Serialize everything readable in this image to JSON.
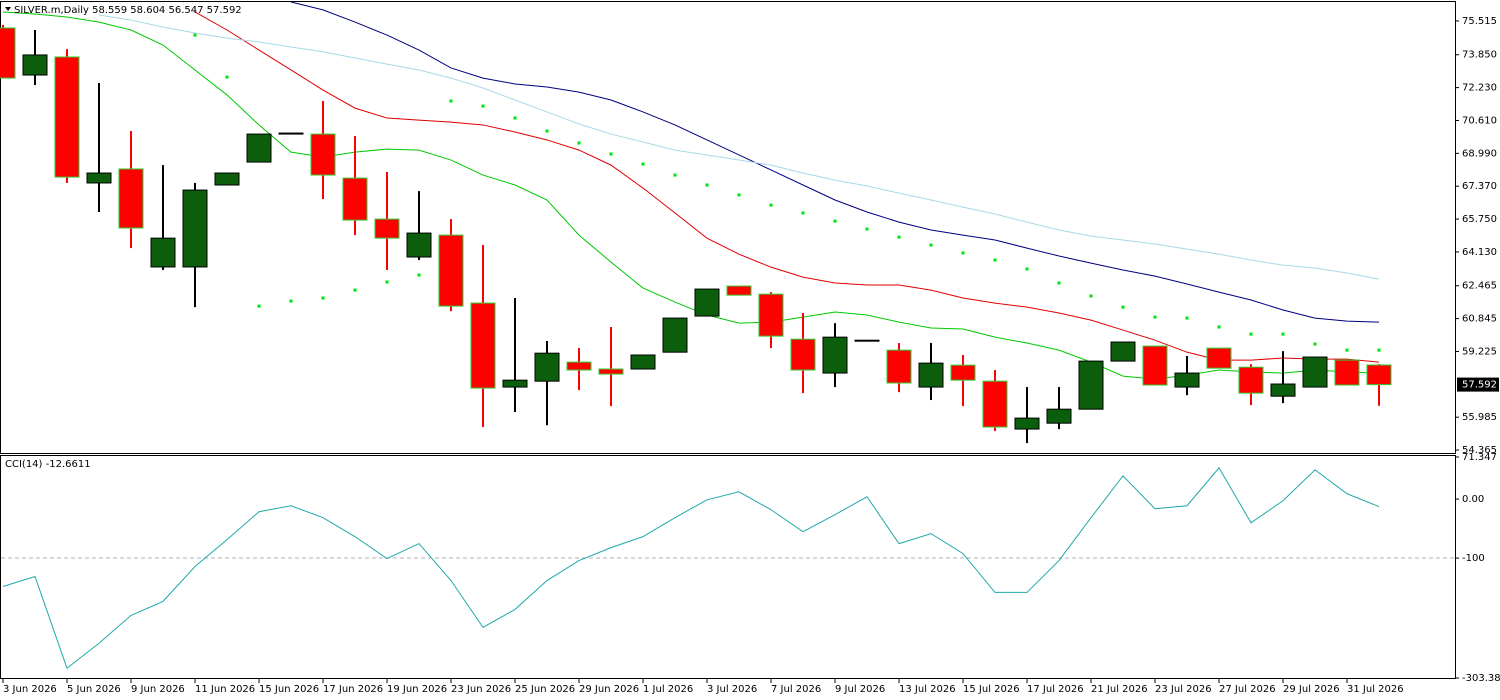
{
  "chart_data": [
    {
      "type": "candlestick",
      "title": "SILVER.m,Daily",
      "categories": [
        "3 Jun 2026",
        null,
        "5 Jun 2026",
        null,
        "9 Jun 2026",
        null,
        "11 Jun 2026",
        null,
        "15 Jun 2026",
        null,
        "17 Jun 2026",
        null,
        "19 Jun 2026",
        null,
        "23 Jun 2026",
        null,
        "25 Jun 2026",
        null,
        "29 Jun 2026",
        null,
        "1 Jul 2026",
        null,
        "3 Jul 2026",
        null,
        "7 Jul 2026",
        null,
        "9 Jul 2026",
        null,
        "13 Jul 2026",
        null,
        "15 Jul 2026",
        null,
        "17 Jul 2026",
        null,
        "21 Jul 2026",
        null,
        "23 Jul 2026",
        null,
        "27 Jul 2026",
        null,
        "29 Jul 2026",
        null,
        "31 Jul 2026",
        null
      ],
      "open": [
        75.17,
        72.85,
        73.74,
        67.53,
        68.22,
        63.39,
        63.39,
        67.43,
        68.56,
        69.94,
        69.94,
        67.77,
        65.75,
        63.88,
        64.96,
        61.61,
        57.47,
        57.76,
        58.7,
        58.36,
        58.36,
        59.19,
        60.97,
        62.45,
        62.05,
        59.83,
        58.16,
        59.78,
        59.29,
        57.47,
        58.55,
        57.76,
        55.4,
        55.69,
        56.38,
        58.75,
        59.49,
        57.47,
        59.39,
        58.45,
        57.02,
        57.47,
        58.8,
        58.559
      ],
      "high": [
        75.32,
        75.07,
        74.13,
        72.46,
        70.09,
        68.41,
        67.53,
        68.02,
        69.94,
        69.99,
        71.57,
        69.84,
        68.07,
        67.13,
        65.75,
        64.47,
        61.86,
        59.74,
        59.39,
        60.43,
        59.05,
        60.87,
        62.3,
        62.45,
        62.15,
        61.12,
        60.62,
        59.78,
        59.64,
        59.64,
        59.05,
        58.31,
        57.47,
        57.47,
        58.75,
        59.69,
        59.49,
        59.0,
        59.39,
        58.6,
        59.24,
        58.95,
        58.8,
        58.604
      ],
      "low": [
        72.7,
        72.36,
        67.53,
        66.1,
        64.32,
        63.24,
        61.41,
        67.43,
        68.56,
        69.94,
        66.74,
        64.96,
        63.24,
        63.73,
        61.21,
        55.5,
        56.24,
        55.59,
        57.32,
        56.53,
        58.36,
        59.19,
        60.97,
        62.0,
        59.39,
        57.17,
        57.47,
        59.78,
        57.22,
        56.83,
        56.53,
        55.3,
        54.71,
        55.4,
        56.38,
        58.75,
        57.57,
        57.07,
        58.4,
        56.58,
        56.68,
        57.47,
        57.57,
        56.547
      ],
      "close": [
        72.7,
        73.84,
        67.82,
        68.02,
        65.31,
        64.81,
        67.18,
        68.02,
        69.94,
        69.99,
        67.92,
        65.7,
        64.81,
        65.06,
        61.46,
        57.42,
        57.81,
        59.14,
        58.31,
        58.11,
        59.05,
        60.87,
        62.3,
        62.0,
        59.98,
        58.31,
        59.93,
        59.78,
        57.67,
        58.65,
        57.81,
        55.5,
        55.94,
        56.38,
        58.75,
        59.69,
        57.57,
        58.16,
        58.4,
        57.17,
        57.62,
        58.95,
        57.57,
        57.592
      ],
      "up_color": "#0b5e0b",
      "down_color": "#ff0000",
      "series": [
        {
          "color": "#00c800",
          "values": [
            75.96,
            75.86,
            75.71,
            75.46,
            75.07,
            74.33,
            73.1,
            71.87,
            70.39,
            69.05,
            68.81,
            69.05,
            69.2,
            69.15,
            68.66,
            67.92,
            67.43,
            66.69,
            64.96,
            63.63,
            62.35,
            61.66,
            61.02,
            60.62,
            60.67,
            60.92,
            61.17,
            61.02,
            60.67,
            60.38,
            60.33,
            59.93,
            59.64,
            59.29,
            58.7,
            58.01,
            57.86,
            58.06,
            58.31,
            58.21,
            58.16,
            58.31,
            58.21,
            58.16
          ]
        },
        {
          "color": "#e00000",
          "values": [
            null,
            null,
            null,
            null,
            null,
            null,
            75.96,
            75.07,
            74.08,
            73.1,
            72.11,
            71.22,
            70.73,
            70.63,
            70.53,
            70.39,
            70.04,
            69.65,
            69.15,
            68.41,
            67.28,
            66.05,
            64.81,
            64.02,
            63.38,
            62.89,
            62.6,
            62.5,
            62.5,
            62.25,
            61.86,
            61.61,
            61.41,
            61.12,
            60.77,
            60.28,
            59.78,
            59.19,
            58.8,
            58.8,
            58.9,
            58.85,
            58.85,
            58.7
          ]
        },
        {
          "color": "#000080",
          "values": [
            null,
            null,
            null,
            null,
            null,
            null,
            null,
            null,
            null,
            76.45,
            76.06,
            75.46,
            74.82,
            74.08,
            73.2,
            72.7,
            72.41,
            72.26,
            72.01,
            71.62,
            71.03,
            70.39,
            69.65,
            68.91,
            68.17,
            67.43,
            66.69,
            66.1,
            65.6,
            65.21,
            64.96,
            64.72,
            64.32,
            63.93,
            63.58,
            63.24,
            62.94,
            62.55,
            62.15,
            61.76,
            61.27,
            60.87,
            60.72,
            60.67
          ]
        },
        {
          "color": "#a8d8e8",
          "values": [
            null,
            null,
            null,
            75.81,
            75.56,
            75.22,
            74.92,
            74.67,
            74.48,
            74.23,
            73.99,
            73.69,
            73.39,
            73.1,
            72.7,
            72.21,
            71.62,
            71.03,
            70.44,
            69.94,
            69.55,
            69.15,
            68.91,
            68.66,
            68.41,
            68.02,
            67.67,
            67.38,
            67.03,
            66.69,
            66.34,
            66.0,
            65.6,
            65.21,
            64.91,
            64.72,
            64.52,
            64.27,
            64.02,
            63.73,
            63.48,
            63.33,
            63.09,
            62.79
          ]
        }
      ],
      "sar": {
        "color": "#00e000",
        "values": [
          null,
          null,
          null,
          null,
          null,
          null,
          74.82,
          72.75,
          61.46,
          61.71,
          61.86,
          62.25,
          62.65,
          62.99,
          71.57,
          71.32,
          70.73,
          70.09,
          69.5,
          68.96,
          68.46,
          67.92,
          67.43,
          66.94,
          66.44,
          66.05,
          65.65,
          65.26,
          64.86,
          64.47,
          64.08,
          63.73,
          63.29,
          62.6,
          61.96,
          61.41,
          60.92,
          60.87,
          60.43,
          60.08,
          60.08,
          59.59,
          59.29,
          59.29
        ]
      },
      "ylim": [
        54.22,
        76.45
      ],
      "yticks": [
        75.515,
        {
          "value": 73.85,
          "label": "73.850"
        },
        {
          "value": 72.23,
          "label": "72.230"
        },
        {
          "value": 70.61,
          "label": "70.610"
        },
        {
          "value": 68.99,
          "label": "68.990"
        },
        {
          "value": 67.37,
          "label": "67.370"
        },
        {
          "value": 65.75,
          "label": "65.750"
        },
        {
          "value": 64.13,
          "label": "64.130"
        },
        62.465,
        60.845,
        59.225,
        55.985,
        54.365
      ]
    },
    {
      "type": "line",
      "title": "CCI(14)",
      "series": [
        {
          "color": "#20a8a8",
          "values": [
            -148.2,
            -131.3,
            -286.8,
            -244.5,
            -197.2,
            -173.5,
            -114.4,
            -68.8,
            -21.5,
            -11.3,
            -31.6,
            -63.7,
            -100.9,
            -75.5,
            -138.1,
            -217.5,
            -187.1,
            -138.1,
            -104.3,
            -82.3,
            -63.7,
            -31.6,
            -1.2,
            12.3,
            -18.1,
            -55.3,
            -26.5,
            3.9,
            -75.5,
            -58.6,
            -92.4,
            -158.3,
            -158.3,
            -104.3,
            -31.6,
            39.4,
            -16.4,
            -11.3,
            52.9,
            -40.1,
            -2.9,
            49.5,
            9,
            -12.6611
          ]
        }
      ],
      "ylim": [
        -303.385,
        71.347
      ],
      "yticks": [
        71.347,
        {
          "value": 0,
          "label": "0.00"
        },
        -100,
        -303.385
      ],
      "levels": [
        -100
      ]
    }
  ]
}
